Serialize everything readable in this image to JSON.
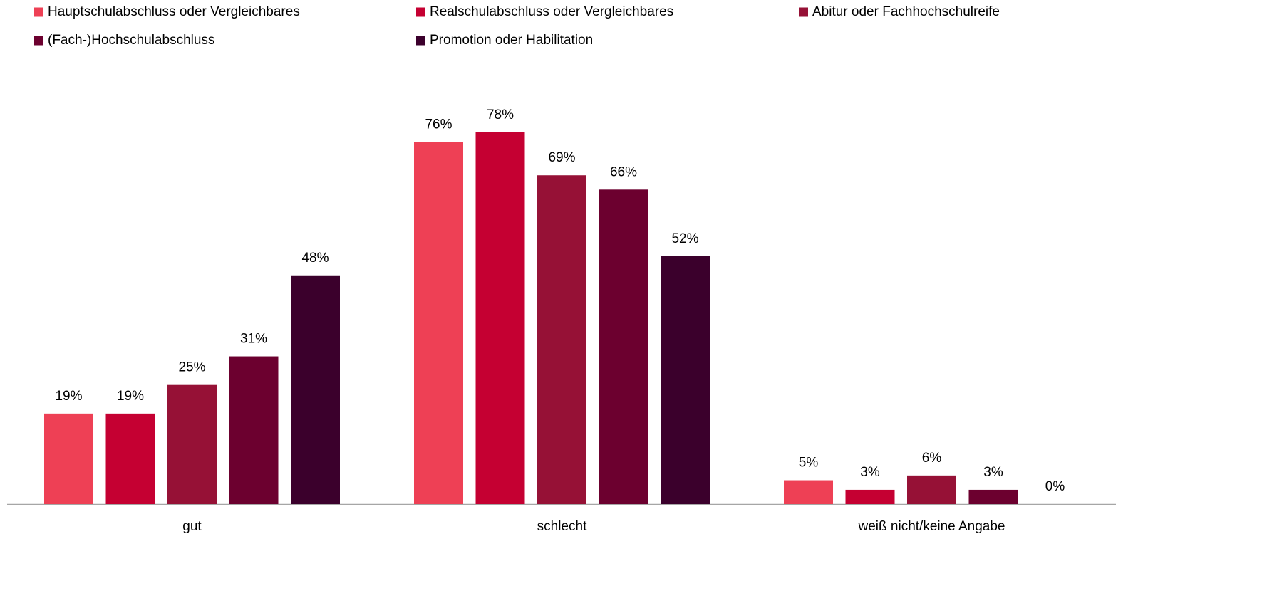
{
  "chart_data": {
    "type": "bar",
    "categories": [
      "gut",
      "schlecht",
      "weiß nicht/keine Angabe"
    ],
    "series": [
      {
        "name": "Hauptschulabschluss oder Vergleichbares",
        "color": "#ee4055",
        "values": [
          19,
          76,
          5
        ],
        "value_labels": [
          "19%",
          "76%",
          "5%"
        ]
      },
      {
        "name": "Realschulabschluss oder Vergleichbares",
        "color": "#c50032",
        "values": [
          19,
          78,
          3
        ],
        "value_labels": [
          "19%",
          "78%",
          "3%"
        ]
      },
      {
        "name": "Abitur oder Fachhochschulreife",
        "color": "#961136",
        "values": [
          25,
          69,
          6
        ],
        "value_labels": [
          "25%",
          "69%",
          "6%"
        ]
      },
      {
        "name": "(Fach-)Hochschulabschluss",
        "color": "#6c002f",
        "values": [
          31,
          66,
          3
        ],
        "value_labels": [
          "31%",
          "66%",
          "3%"
        ]
      },
      {
        "name": "Promotion oder Habilitation",
        "color": "#3b002c",
        "values": [
          48,
          52,
          0
        ],
        "value_labels": [
          "48%",
          "52%",
          "0%"
        ]
      }
    ],
    "legend": "top"
  }
}
